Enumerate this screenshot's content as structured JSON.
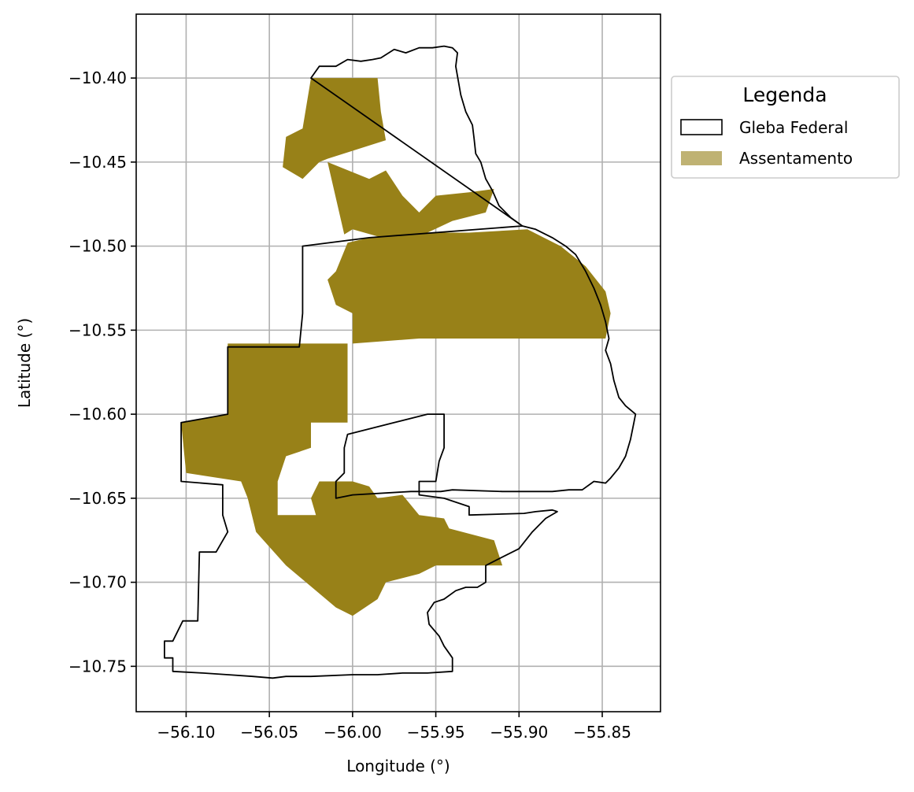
{
  "chart_data": {
    "type": "map",
    "xlabel": "Longitude (°)",
    "ylabel": "Latitude (°)",
    "xlim": [
      -56.13,
      -55.815
    ],
    "ylim": [
      -10.777,
      -10.362
    ],
    "x_ticks": [
      -56.1,
      -56.05,
      -56.0,
      -55.95,
      -55.9,
      -55.85
    ],
    "x_tick_labels": [
      "−56.10",
      "−56.05",
      "−56.00",
      "−55.95",
      "−55.90",
      "−55.85"
    ],
    "y_ticks": [
      -10.4,
      -10.45,
      -10.5,
      -10.55,
      -10.6,
      -10.65,
      -10.7,
      -10.75
    ],
    "y_tick_labels": [
      "−10.40",
      "−10.45",
      "−10.50",
      "−10.55",
      "−10.60",
      "−10.65",
      "−10.70",
      "−10.75"
    ],
    "grid": true,
    "legend": {
      "title": "Legenda",
      "placement": "outside-top-right",
      "entries": [
        {
          "label": "Gleba Federal",
          "style": "outline",
          "color": "#000000"
        },
        {
          "label": "Assentamento",
          "style": "fill",
          "color": "#988118"
        }
      ]
    },
    "colors": {
      "settlement": "#988118",
      "settlement_legend": "#bfb273",
      "boundary": "#000000",
      "grid": "#b0b0b0"
    },
    "layers": {
      "gleba_federal": [
        [
          [
            -56.025,
            -10.4
          ],
          [
            -56.02,
            -10.393
          ],
          [
            -56.01,
            -10.393
          ],
          [
            -56.003,
            -10.389
          ],
          [
            -55.995,
            -10.39
          ],
          [
            -55.988,
            -10.389
          ],
          [
            -55.983,
            -10.388
          ],
          [
            -55.975,
            -10.383
          ],
          [
            -55.968,
            -10.385
          ],
          [
            -55.96,
            -10.382
          ],
          [
            -55.952,
            -10.382
          ],
          [
            -55.945,
            -10.381
          ],
          [
            -55.94,
            -10.382
          ],
          [
            -55.937,
            -10.385
          ],
          [
            -55.938,
            -10.393
          ],
          [
            -55.935,
            -10.41
          ],
          [
            -55.932,
            -10.42
          ],
          [
            -55.928,
            -10.428
          ],
          [
            -55.927,
            -10.436
          ],
          [
            -55.926,
            -10.445
          ],
          [
            -55.923,
            -10.45
          ],
          [
            -55.92,
            -10.46
          ],
          [
            -55.916,
            -10.467
          ],
          [
            -55.912,
            -10.476
          ],
          [
            -55.905,
            -10.483
          ],
          [
            -55.898,
            -10.488
          ],
          [
            -55.99,
            -10.495
          ],
          [
            -56.03,
            -10.5
          ],
          [
            -56.03,
            -10.54
          ],
          [
            -56.032,
            -10.56
          ],
          [
            -56.075,
            -10.56
          ],
          [
            -56.075,
            -10.6
          ],
          [
            -56.103,
            -10.605
          ],
          [
            -56.103,
            -10.64
          ],
          [
            -56.078,
            -10.642
          ],
          [
            -56.078,
            -10.66
          ],
          [
            -56.075,
            -10.67
          ],
          [
            -56.082,
            -10.682
          ],
          [
            -56.092,
            -10.682
          ],
          [
            -56.093,
            -10.723
          ],
          [
            -56.102,
            -10.723
          ],
          [
            -56.108,
            -10.735
          ],
          [
            -56.113,
            -10.735
          ],
          [
            -56.113,
            -10.745
          ],
          [
            -56.108,
            -10.745
          ],
          [
            -56.108,
            -10.753
          ],
          [
            -56.09,
            -10.754
          ],
          [
            -56.075,
            -10.755
          ],
          [
            -56.06,
            -10.756
          ],
          [
            -56.048,
            -10.757
          ],
          [
            -56.04,
            -10.756
          ],
          [
            -56.025,
            -10.756
          ],
          [
            -56.0,
            -10.755
          ],
          [
            -55.985,
            -10.755
          ],
          [
            -55.97,
            -10.754
          ],
          [
            -55.955,
            -10.754
          ],
          [
            -55.94,
            -10.753
          ],
          [
            -55.94,
            -10.745
          ],
          [
            -55.945,
            -10.738
          ],
          [
            -55.948,
            -10.732
          ],
          [
            -55.954,
            -10.725
          ],
          [
            -55.955,
            -10.718
          ],
          [
            -55.951,
            -10.712
          ],
          [
            -55.945,
            -10.71
          ],
          [
            -55.938,
            -10.705
          ],
          [
            -55.932,
            -10.703
          ],
          [
            -55.925,
            -10.703
          ],
          [
            -55.92,
            -10.7
          ],
          [
            -55.92,
            -10.69
          ],
          [
            -55.91,
            -10.685
          ],
          [
            -55.9,
            -10.68
          ],
          [
            -55.892,
            -10.67
          ],
          [
            -55.884,
            -10.662
          ],
          [
            -55.877,
            -10.658
          ],
          [
            -55.88,
            -10.657
          ],
          [
            -55.89,
            -10.658
          ],
          [
            -55.897,
            -10.659
          ],
          [
            -55.93,
            -10.66
          ],
          [
            -55.93,
            -10.655
          ],
          [
            -55.945,
            -10.65
          ],
          [
            -55.96,
            -10.648
          ],
          [
            -55.96,
            -10.64
          ],
          [
            -55.95,
            -10.64
          ],
          [
            -55.948,
            -10.628
          ],
          [
            -55.945,
            -10.62
          ],
          [
            -55.945,
            -10.61
          ],
          [
            -55.945,
            -10.6
          ],
          [
            -55.955,
            -10.6
          ],
          [
            -55.975,
            -10.605
          ],
          [
            -56.003,
            -10.612
          ],
          [
            -56.005,
            -10.62
          ],
          [
            -56.005,
            -10.635
          ],
          [
            -56.01,
            -10.64
          ],
          [
            -56.01,
            -10.65
          ],
          [
            -56.0,
            -10.648
          ],
          [
            -55.965,
            -10.646
          ],
          [
            -55.957,
            -10.646
          ],
          [
            -55.947,
            -10.646
          ],
          [
            -55.94,
            -10.645
          ],
          [
            -55.91,
            -10.646
          ],
          [
            -55.88,
            -10.646
          ],
          [
            -55.87,
            -10.645
          ],
          [
            -55.862,
            -10.645
          ],
          [
            -55.855,
            -10.64
          ],
          [
            -55.848,
            -10.641
          ],
          [
            -55.845,
            -10.638
          ],
          [
            -55.84,
            -10.632
          ],
          [
            -55.836,
            -10.625
          ],
          [
            -55.833,
            -10.615
          ],
          [
            -55.831,
            -10.605
          ],
          [
            -55.83,
            -10.6
          ],
          [
            -55.836,
            -10.595
          ],
          [
            -55.84,
            -10.59
          ],
          [
            -55.843,
            -10.58
          ],
          [
            -55.845,
            -10.57
          ],
          [
            -55.848,
            -10.562
          ],
          [
            -55.846,
            -10.555
          ],
          [
            -55.848,
            -10.545
          ],
          [
            -55.851,
            -10.535
          ],
          [
            -55.855,
            -10.525
          ],
          [
            -55.86,
            -10.515
          ],
          [
            -55.866,
            -10.505
          ],
          [
            -55.872,
            -10.5
          ],
          [
            -55.88,
            -10.495
          ],
          [
            -55.89,
            -10.49
          ],
          [
            -55.898,
            -10.488
          ]
        ]
      ],
      "assentamento": [
        [
          [
            -56.025,
            -10.4
          ],
          [
            -55.985,
            -10.4
          ],
          [
            -55.983,
            -10.42
          ],
          [
            -55.98,
            -10.437
          ],
          [
            -56.015,
            -10.448
          ],
          [
            -56.02,
            -10.45
          ],
          [
            -56.03,
            -10.46
          ],
          [
            -56.042,
            -10.453
          ],
          [
            -56.04,
            -10.435
          ],
          [
            -56.03,
            -10.43
          ],
          [
            -56.025,
            -10.4
          ]
        ],
        [
          [
            -56.015,
            -10.45
          ],
          [
            -55.99,
            -10.46
          ],
          [
            -55.98,
            -10.455
          ],
          [
            -55.97,
            -10.47
          ],
          [
            -55.96,
            -10.48
          ],
          [
            -55.95,
            -10.47
          ],
          [
            -55.93,
            -10.468
          ],
          [
            -55.915,
            -10.466
          ],
          [
            -55.92,
            -10.48
          ],
          [
            -55.94,
            -10.485
          ],
          [
            -55.955,
            -10.492
          ],
          [
            -55.975,
            -10.497
          ],
          [
            -56.0,
            -10.49
          ],
          [
            -56.005,
            -10.493
          ],
          [
            -56.015,
            -10.45
          ]
        ],
        [
          [
            -56.003,
            -10.498
          ],
          [
            -55.99,
            -10.495
          ],
          [
            -55.955,
            -10.492
          ],
          [
            -55.93,
            -10.492
          ],
          [
            -55.895,
            -10.49
          ],
          [
            -55.875,
            -10.5
          ],
          [
            -55.86,
            -10.512
          ],
          [
            -55.848,
            -10.527
          ],
          [
            -55.845,
            -10.54
          ],
          [
            -55.848,
            -10.555
          ],
          [
            -55.86,
            -10.555
          ],
          [
            -55.9,
            -10.555
          ],
          [
            -55.94,
            -10.555
          ],
          [
            -55.96,
            -10.555
          ],
          [
            -56.0,
            -10.558
          ],
          [
            -56.0,
            -10.54
          ],
          [
            -56.01,
            -10.535
          ],
          [
            -56.015,
            -10.52
          ],
          [
            -56.01,
            -10.515
          ],
          [
            -56.003,
            -10.498
          ]
        ],
        [
          [
            -56.075,
            -10.558
          ],
          [
            -56.003,
            -10.558
          ],
          [
            -56.003,
            -10.605
          ],
          [
            -56.025,
            -10.605
          ],
          [
            -56.025,
            -10.62
          ],
          [
            -56.04,
            -10.625
          ],
          [
            -56.045,
            -10.64
          ],
          [
            -56.045,
            -10.66
          ],
          [
            -56.022,
            -10.66
          ],
          [
            -56.025,
            -10.65
          ],
          [
            -56.02,
            -10.64
          ],
          [
            -56.0,
            -10.64
          ],
          [
            -55.99,
            -10.643
          ],
          [
            -55.985,
            -10.65
          ],
          [
            -55.97,
            -10.648
          ],
          [
            -55.96,
            -10.66
          ],
          [
            -55.945,
            -10.662
          ],
          [
            -55.942,
            -10.668
          ],
          [
            -55.915,
            -10.675
          ],
          [
            -55.91,
            -10.69
          ],
          [
            -55.93,
            -10.69
          ],
          [
            -55.95,
            -10.69
          ],
          [
            -55.96,
            -10.695
          ],
          [
            -55.98,
            -10.7
          ],
          [
            -55.985,
            -10.71
          ],
          [
            -56.0,
            -10.72
          ],
          [
            -56.01,
            -10.715
          ],
          [
            -56.04,
            -10.69
          ],
          [
            -56.058,
            -10.67
          ],
          [
            -56.063,
            -10.65
          ],
          [
            -56.067,
            -10.64
          ],
          [
            -56.1,
            -10.635
          ],
          [
            -56.103,
            -10.605
          ],
          [
            -56.075,
            -10.6
          ],
          [
            -56.075,
            -10.558
          ]
        ]
      ]
    }
  }
}
